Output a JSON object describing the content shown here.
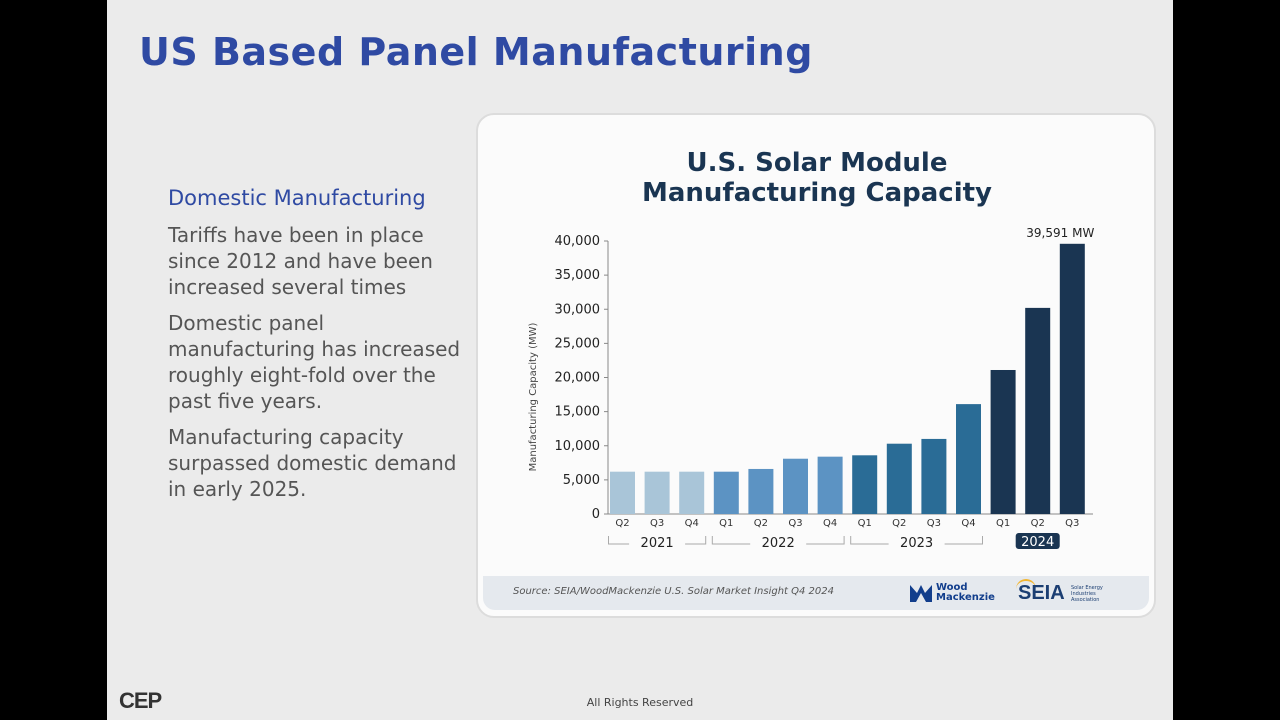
{
  "slide": {
    "title": "US Based Panel Manufacturing",
    "section_heading": "Domestic Manufacturing",
    "paragraphs": [
      "Tariffs have been in place since 2012 and have been increased several times",
      "Domestic panel manufacturing has increased roughly eight-fold over the past five years.",
      "Manufacturing capacity surpassed domestic demand in early 2025."
    ],
    "footer": "All Rights Reserved",
    "logo_text": "CEP"
  },
  "chart_data": {
    "type": "bar",
    "title_lines": [
      "U.S. Solar Module",
      "Manufacturing Capacity"
    ],
    "ylabel": "Manufacturing Capacity (MW)",
    "xlabel": "",
    "ylim": [
      0,
      40000
    ],
    "y_ticks": [
      "0",
      "5,000",
      "10,000",
      "15,000",
      "20,000",
      "25,000",
      "30,000",
      "35,000",
      "40,000"
    ],
    "grid": false,
    "categories": [
      "Q2",
      "Q3",
      "Q4",
      "Q1",
      "Q2",
      "Q3",
      "Q4",
      "Q1",
      "Q2",
      "Q3",
      "Q4",
      "Q1",
      "Q2",
      "Q3"
    ],
    "years": [
      "2021",
      "2022",
      "2023",
      "2024"
    ],
    "highlighted_year": "2024",
    "values": [
      6200,
      6200,
      6200,
      6200,
      6600,
      8100,
      8400,
      8600,
      10300,
      11000,
      16100,
      21100,
      30200,
      39591
    ],
    "bar_colors": [
      "#a9c5d8",
      "#a9c5d8",
      "#a9c5d8",
      "#5c93c3",
      "#5c93c3",
      "#5c93c3",
      "#5c93c3",
      "#2a6c96",
      "#2a6c96",
      "#2a6c96",
      "#2a6c96",
      "#1a3552",
      "#1a3552",
      "#1a3552"
    ],
    "annotation": "39,591 MW"
  },
  "source": {
    "text": "Source: SEIA/WoodMackenzie U.S. Solar Market Insight Q4 2024",
    "wood_mackenzie": "Wood\nMackenzie",
    "seia": "SEIA",
    "seia_tagline": "Solar Energy\nIndustries\nAssociation"
  },
  "colors": {
    "title_blue": "#2f4aa3",
    "chart_title": "#1a3552",
    "background": "#ebebeb"
  }
}
